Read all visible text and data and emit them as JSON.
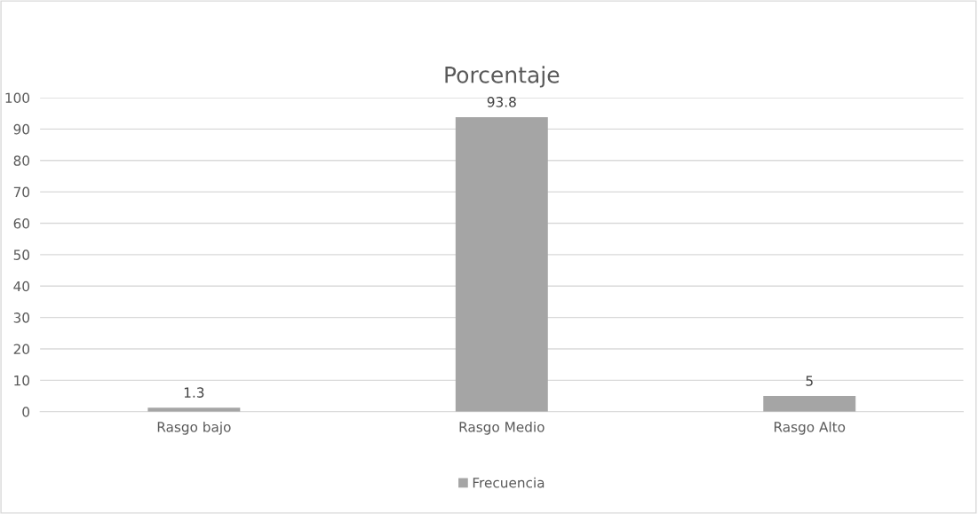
{
  "chart_data": {
    "type": "bar",
    "title": "Porcentaje",
    "categories": [
      "Rasgo bajo",
      "Rasgo Medio",
      "Rasgo Alto"
    ],
    "series": [
      {
        "name": "Frecuencia",
        "color": "#a5a5a5",
        "values": [
          1.3,
          93.8,
          5
        ]
      }
    ],
    "ylim": [
      0,
      100
    ],
    "yticks": [
      0,
      10,
      20,
      30,
      40,
      50,
      60,
      70,
      80,
      90,
      100
    ],
    "grid": "y",
    "legend": "bottom",
    "data_labels": true
  }
}
